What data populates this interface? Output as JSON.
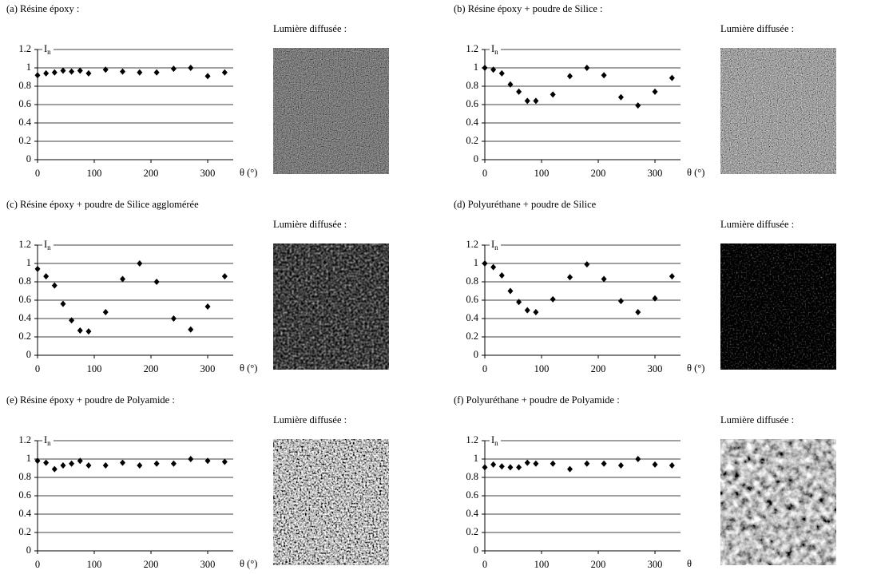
{
  "chart_data": [
    {
      "type": "scatter",
      "title": "(a) Résine époxy :",
      "image_label": "Lumière diffusée :",
      "ylabel": "I",
      "ylabel_sub": "n",
      "xlabel": "θ (°)",
      "color": "#000000",
      "x": [
        0,
        15,
        30,
        45,
        60,
        75,
        90,
        120,
        150,
        180,
        210,
        240,
        270,
        300,
        330
      ],
      "values": [
        0.92,
        0.94,
        0.95,
        0.97,
        0.96,
        0.97,
        0.94,
        0.98,
        0.96,
        0.95,
        0.95,
        0.99,
        1.0,
        0.91,
        0.95
      ],
      "xlim": [
        0,
        345
      ],
      "ylim": [
        0,
        1.2
      ],
      "xticks": [
        0,
        100,
        200,
        300
      ],
      "yticks": [
        0,
        0.2,
        0.4,
        0.6,
        0.8,
        1,
        1.2
      ],
      "grid": true
    },
    {
      "type": "scatter",
      "title": "(b) Résine époxy + poudre de Silice :",
      "image_label": "Lumière diffusée :",
      "ylabel": "I",
      "ylabel_sub": "n",
      "xlabel": "θ (°)",
      "color": "#000000",
      "x": [
        0,
        15,
        30,
        45,
        60,
        75,
        90,
        120,
        150,
        180,
        210,
        240,
        270,
        300,
        330
      ],
      "values": [
        1.0,
        0.98,
        0.94,
        0.82,
        0.74,
        0.64,
        0.64,
        0.71,
        0.91,
        1.0,
        0.92,
        0.68,
        0.59,
        0.74,
        0.89
      ],
      "xlim": [
        0,
        345
      ],
      "ylim": [
        0,
        1.2
      ],
      "xticks": [
        0,
        100,
        200,
        300
      ],
      "yticks": [
        0,
        0.2,
        0.4,
        0.6,
        0.8,
        1,
        1.2
      ],
      "grid": true
    },
    {
      "type": "scatter",
      "title": "(c) Résine époxy + poudre de Silice agglomérée",
      "image_label": "Lumière diffusée :",
      "ylabel": "I",
      "ylabel_sub": "n",
      "xlabel": "θ (°)",
      "color": "#000000",
      "x": [
        0,
        15,
        30,
        45,
        60,
        75,
        90,
        120,
        150,
        180,
        210,
        240,
        270,
        300,
        330
      ],
      "values": [
        0.94,
        0.86,
        0.76,
        0.56,
        0.38,
        0.27,
        0.26,
        0.47,
        0.83,
        1.0,
        0.8,
        0.4,
        0.28,
        0.53,
        0.86
      ],
      "xlim": [
        0,
        345
      ],
      "ylim": [
        0,
        1.2
      ],
      "xticks": [
        0,
        100,
        200,
        300
      ],
      "yticks": [
        0,
        0.2,
        0.4,
        0.6,
        0.8,
        1,
        1.2
      ],
      "grid": true
    },
    {
      "type": "scatter",
      "title": "(d) Polyuréthane + poudre de Silice",
      "image_label": "Lumière diffusée :",
      "ylabel": "I",
      "ylabel_sub": "n",
      "xlabel": "θ (°)",
      "color": "#000000",
      "x": [
        0,
        15,
        30,
        45,
        60,
        75,
        90,
        120,
        150,
        180,
        210,
        240,
        270,
        300,
        330
      ],
      "values": [
        1.0,
        0.96,
        0.87,
        0.7,
        0.58,
        0.49,
        0.47,
        0.61,
        0.85,
        0.99,
        0.83,
        0.59,
        0.47,
        0.62,
        0.86
      ],
      "xlim": [
        0,
        345
      ],
      "ylim": [
        0,
        1.2
      ],
      "xticks": [
        0,
        100,
        200,
        300
      ],
      "yticks": [
        0,
        0.2,
        0.4,
        0.6,
        0.8,
        1,
        1.2
      ],
      "grid": true
    },
    {
      "type": "scatter",
      "title": "(e) Résine époxy + poudre de Polyamide :",
      "image_label": "Lumière diffusée :",
      "ylabel": "I",
      "ylabel_sub": "n",
      "xlabel": "θ (°)",
      "color": "#000000",
      "x": [
        0,
        15,
        30,
        45,
        60,
        75,
        90,
        120,
        150,
        180,
        210,
        240,
        270,
        300,
        330
      ],
      "values": [
        0.98,
        0.96,
        0.89,
        0.93,
        0.95,
        0.98,
        0.93,
        0.93,
        0.96,
        0.93,
        0.95,
        0.95,
        1.0,
        0.98,
        0.97
      ],
      "xlim": [
        0,
        345
      ],
      "ylim": [
        0,
        1.2
      ],
      "xticks": [
        0,
        100,
        200,
        300
      ],
      "yticks": [
        0,
        0.2,
        0.4,
        0.6,
        0.8,
        1,
        1.2
      ],
      "grid": true
    },
    {
      "type": "scatter",
      "title": "(f) Polyuréthane + poudre de Polyamide :",
      "image_label": "Lumière diffusée :",
      "ylabel": "I",
      "ylabel_sub": "n",
      "xlabel": "θ",
      "color": "#000000",
      "x": [
        0,
        15,
        30,
        45,
        60,
        75,
        90,
        120,
        150,
        180,
        210,
        240,
        270,
        300,
        330
      ],
      "values": [
        0.91,
        0.94,
        0.92,
        0.91,
        0.91,
        0.96,
        0.95,
        0.95,
        0.89,
        0.95,
        0.95,
        0.93,
        1.0,
        0.94,
        0.93
      ],
      "xlim": [
        0,
        345
      ],
      "ylim": [
        0,
        1.2
      ],
      "xticks": [
        0,
        100,
        200,
        300
      ],
      "yticks": [
        0,
        0.2,
        0.4,
        0.6,
        0.8,
        1,
        1.2
      ],
      "grid": true
    }
  ]
}
